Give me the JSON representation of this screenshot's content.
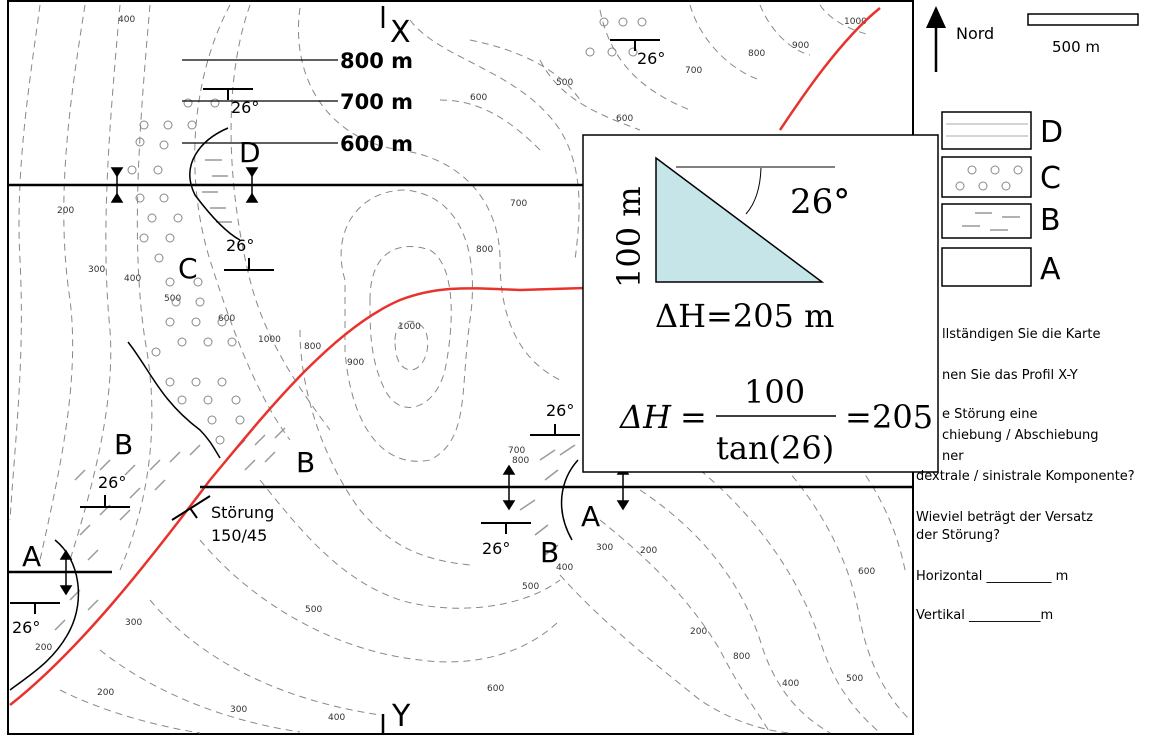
{
  "map": {
    "section_top": "X",
    "section_bottom": "Y",
    "construction_labels": [
      "800 m",
      "700 m",
      "600 m"
    ],
    "contour_labels": [
      "400",
      "800",
      "900",
      "1000",
      "500",
      "700",
      "600",
      "700",
      "200",
      "800",
      "300",
      "400",
      "500",
      "600",
      "1000",
      "800",
      "900",
      "1000",
      "700",
      "800",
      "600",
      "300",
      "200",
      "400",
      "500",
      "300",
      "200",
      "600",
      "500",
      "200",
      "800",
      "400",
      "500",
      "600",
      "400",
      "300",
      "200"
    ],
    "dip_labels": [
      "26°",
      "26°",
      "26°",
      "26°",
      "26°",
      "26°",
      "26°"
    ],
    "unit_labels": [
      "D",
      "C",
      "B",
      "B",
      "B",
      "A",
      "A"
    ],
    "fault_label": "Störung",
    "fault_orientation": "150/45",
    "fault_color": "#e8322c"
  },
  "north_arrow": {
    "label": "Nord"
  },
  "scale_bar": {
    "label": "500 m"
  },
  "legend": {
    "units": [
      "D",
      "C",
      "B",
      "A"
    ]
  },
  "overlay": {
    "height_label": "100 m",
    "angle_label": "26°",
    "delta_h_result": "ΔH=205 m",
    "formula_lhs": "ΔH",
    "formula_numerator": "100",
    "formula_denominator": "tan(26)",
    "formula_result": "205",
    "triangle_color": "#c5e5e8"
  },
  "questions": {
    "q1": "llständigen Sie die Karte",
    "q2": "nen Sie das Profil X-Y",
    "q3a": "e Störung eine",
    "q3b": "chiebung / Abschiebung",
    "q3c": "ner",
    "q3d": "dextrale / sinistrale Komponente?",
    "q4a": "Wieviel beträgt der Versatz",
    "q4b": "der Störung?",
    "horizontal": "Horizontal __________ m",
    "vertikal": "Vertikal ___________m"
  }
}
